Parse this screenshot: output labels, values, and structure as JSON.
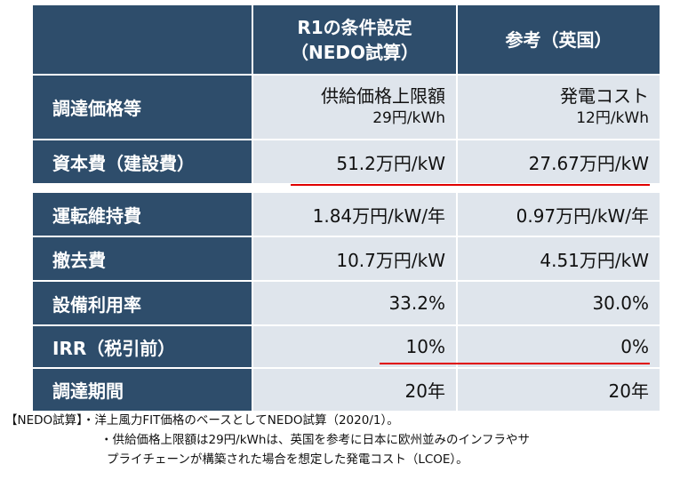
{
  "table": {
    "header": {
      "col1_line1": "R1の条件設定",
      "col1_line2": "（NEDO試算）",
      "col2": "参考（英国）"
    },
    "rows": [
      {
        "label": "調達価格等",
        "c1_main": "供給価格上限額",
        "c1_sub": "29円/kWh",
        "c2_main": "発電コスト",
        "c2_sub": "12円/kWh"
      },
      {
        "label": "資本費（建設費）",
        "c1": "51.2万円/kW",
        "c2": "27.67万円/kW"
      },
      {
        "label": "運転維持費",
        "c1": "1.84万円/kW/年",
        "c2": "0.97万円/kW/年"
      },
      {
        "label": "撤去費",
        "c1": "10.7万円/kW",
        "c2": "4.51万円/kW"
      },
      {
        "label": "設備利用率",
        "c1": "33.2%",
        "c2": "30.0%"
      },
      {
        "label": "IRR（税引前）",
        "c1": "10%",
        "c2": "0%"
      },
      {
        "label": "調達期間",
        "c1": "20年",
        "c2": "20年"
      }
    ]
  },
  "notes": {
    "line1": "【NEDO試算】・洋上風力FIT価格のベースとしてNEDO試算（2020/1）。",
    "line2": "・供給価格上限額は29円/kWhは、英国を参考に日本に欧州並みのインフラやサ",
    "line3": "プライチェーンが構築された場合を想定した発電コスト（LCOE）。"
  },
  "colors": {
    "header_bg": "#2e4d6b",
    "cell_bg": "#dfe5ec",
    "underline": "#e00000"
  }
}
